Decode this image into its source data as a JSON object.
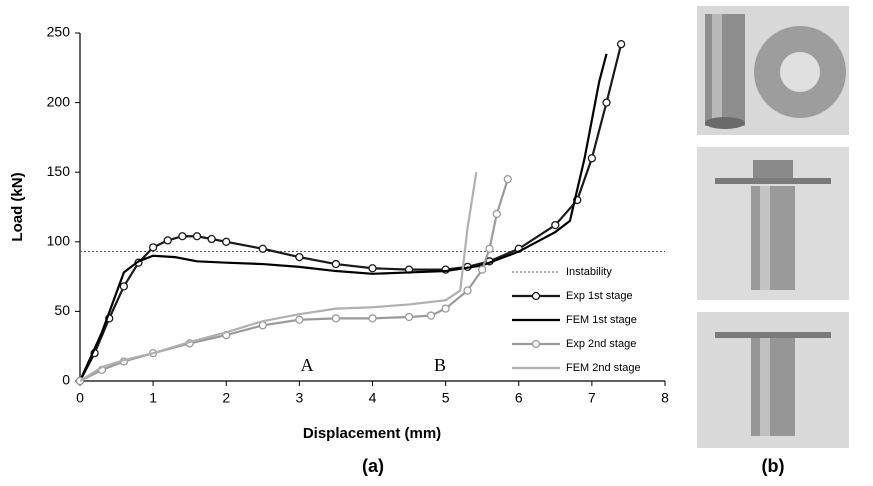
{
  "chart_data": {
    "type": "line",
    "xlabel": "Displacement (mm)",
    "ylabel": "Load (kN)",
    "xlim": [
      0,
      8
    ],
    "xticks": [
      0,
      1,
      2,
      3,
      4,
      5,
      6,
      7,
      8
    ],
    "ylim": [
      0,
      250
    ],
    "yticks": [
      0,
      50,
      100,
      150,
      200,
      250
    ],
    "grid": false,
    "legend": "lower right",
    "annotations": [
      "A",
      "B"
    ],
    "series": [
      {
        "name": "Instability",
        "color": "#555555",
        "style": "dotted",
        "x": [
          0,
          8
        ],
        "values": [
          93,
          93
        ]
      },
      {
        "name": "Exp 1st stage",
        "color": "#1a1a1a",
        "marker": "circle",
        "x": [
          0,
          0.2,
          0.4,
          0.6,
          0.8,
          1.0,
          1.2,
          1.4,
          1.6,
          1.8,
          2.0,
          2.5,
          3.0,
          3.5,
          4.0,
          4.5,
          5.0,
          5.3,
          5.6,
          6.0,
          6.5,
          6.8,
          7.0,
          7.2,
          7.4
        ],
        "values": [
          0,
          20,
          45,
          68,
          85,
          96,
          101,
          104,
          104,
          102,
          100,
          95,
          89,
          84,
          81,
          80,
          80,
          82,
          86,
          95,
          112,
          130,
          160,
          200,
          242
        ]
      },
      {
        "name": "FEM 1st stage",
        "color": "#000000",
        "x": [
          0,
          0.3,
          0.6,
          0.8,
          1.0,
          1.3,
          1.6,
          2.0,
          2.5,
          3.0,
          3.5,
          4.0,
          4.5,
          5.0,
          5.5,
          6.0,
          6.5,
          6.7,
          6.9,
          7.1,
          7.2
        ],
        "values": [
          0,
          35,
          78,
          86,
          90,
          89,
          86,
          85,
          84,
          82,
          79,
          77,
          78,
          79,
          83,
          93,
          107,
          115,
          160,
          215,
          235
        ]
      },
      {
        "name": "Exp 2nd stage",
        "color": "#9a9a9a",
        "marker": "circle",
        "x": [
          0,
          0.3,
          0.6,
          1.0,
          1.5,
          2.0,
          2.5,
          3.0,
          3.5,
          4.0,
          4.5,
          4.8,
          5.0,
          5.3,
          5.5,
          5.6,
          5.7,
          5.85
        ],
        "values": [
          0,
          8,
          14,
          20,
          27,
          33,
          40,
          44,
          45,
          45,
          46,
          47,
          52,
          65,
          80,
          95,
          120,
          145
        ]
      },
      {
        "name": "FEM 2nd stage",
        "color": "#b0b0b0",
        "x": [
          0,
          0.3,
          0.6,
          1.0,
          1.5,
          2.0,
          2.5,
          3.0,
          3.5,
          4.0,
          4.5,
          5.0,
          5.2,
          5.3,
          5.42
        ],
        "values": [
          0,
          10,
          15,
          20,
          28,
          35,
          43,
          48,
          52,
          53,
          55,
          58,
          65,
          110,
          150
        ]
      }
    ]
  },
  "panel_labels": [
    "(a)",
    "(b)"
  ]
}
